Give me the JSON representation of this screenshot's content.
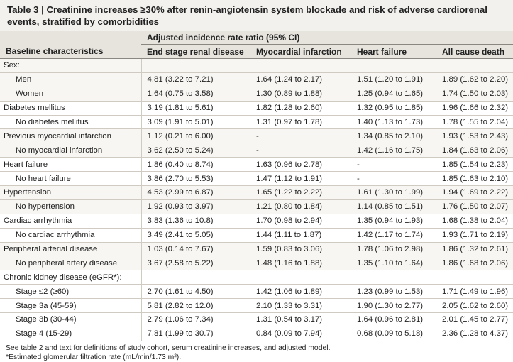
{
  "title": "Table 3 | Creatinine increases ≥30% after renin-angiotensin system blockade and risk of adverse cardiorenal events, stratified by comorbidities",
  "header": {
    "span_label": "Adjusted incidence rate ratio (95% CI)",
    "columns": [
      "Baseline characteristics",
      "End stage renal disease",
      "Myocardial infarction",
      "Heart failure",
      "All cause death"
    ]
  },
  "rows": [
    {
      "label": "Sex:",
      "type": "main",
      "values": [
        "",
        "",
        "",
        ""
      ]
    },
    {
      "label": "Men",
      "type": "sub",
      "values": [
        "4.81 (3.22 to 7.21)",
        "1.64 (1.24 to 2.17)",
        "1.51 (1.20 to 1.91)",
        "1.89 (1.62 to 2.20)"
      ]
    },
    {
      "label": "Women",
      "type": "sub",
      "values": [
        "1.64 (0.75 to 3.58)",
        "1.30 (0.89 to 1.88)",
        "1.25 (0.94 to 1.65)",
        "1.74 (1.50 to 2.03)"
      ]
    },
    {
      "label": "Diabetes mellitus",
      "type": "main",
      "values": [
        "3.19 (1.81 to 5.61)",
        "1.82 (1.28 to 2.60)",
        "1.32 (0.95 to 1.85)",
        "1.96 (1.66 to 2.32)"
      ]
    },
    {
      "label": "No diabetes mellitus",
      "type": "sub",
      "values": [
        "3.09 (1.91 to 5.01)",
        "1.31 (0.97 to 1.78)",
        "1.40 (1.13 to 1.73)",
        "1.78 (1.55 to 2.04)"
      ]
    },
    {
      "label": "Previous myocardial infarction",
      "type": "main",
      "values": [
        "1.12 (0.21 to 6.00)",
        "-",
        "1.34 (0.85 to 2.10)",
        "1.93 (1.53 to 2.43)"
      ]
    },
    {
      "label": "No myocardial infarction",
      "type": "sub",
      "values": [
        "3.62 (2.50 to 5.24)",
        "-",
        "1.42 (1.16 to 1.75)",
        "1.84 (1.63 to 2.06)"
      ]
    },
    {
      "label": "Heart failure",
      "type": "main",
      "values": [
        "1.86 (0.40 to 8.74)",
        "1.63 (0.96 to 2.78)",
        "-",
        "1.85 (1.54 to 2.23)"
      ]
    },
    {
      "label": "No heart failure",
      "type": "sub",
      "values": [
        "3.86 (2.70 to 5.53)",
        "1.47 (1.12 to 1.91)",
        "-",
        "1.85 (1.63 to 2.10)"
      ]
    },
    {
      "label": "Hypertension",
      "type": "main",
      "values": [
        "4.53 (2.99 to 6.87)",
        "1.65 (1.22 to 2.22)",
        "1.61 (1.30 to 1.99)",
        "1.94 (1.69 to 2.22)"
      ]
    },
    {
      "label": "No hypertension",
      "type": "sub",
      "values": [
        "1.92 (0.93 to 3.97)",
        "1.21 (0.80 to 1.84)",
        "1.14 (0.85 to 1.51)",
        "1.76 (1.50 to 2.07)"
      ]
    },
    {
      "label": "Cardiac arrhythmia",
      "type": "main",
      "values": [
        "3.83 (1.36 to 10.8)",
        "1.70 (0.98 to 2.94)",
        "1.35 (0.94 to 1.93)",
        "1.68 (1.38 to 2.04)"
      ]
    },
    {
      "label": "No cardiac arrhythmia",
      "type": "sub",
      "values": [
        "3.49 (2.41 to 5.05)",
        "1.44 (1.11 to 1.87)",
        "1.42 (1.17 to 1.74)",
        "1.93 (1.71 to 2.19)"
      ]
    },
    {
      "label": "Peripheral arterial disease",
      "type": "main",
      "values": [
        "1.03 (0.14 to 7.67)",
        "1.59 (0.83 to 3.06)",
        "1.78 (1.06 to 2.98)",
        "1.86 (1.32 to 2.61)"
      ]
    },
    {
      "label": "No peripheral artery disease",
      "type": "sub",
      "values": [
        "3.67 (2.58 to 5.22)",
        "1.48 (1.16 to 1.88)",
        "1.35 (1.10 to 1.64)",
        "1.86 (1.68 to 2.06)"
      ]
    },
    {
      "label": "Chronic kidney disease (eGFR*):",
      "type": "main",
      "values": [
        "",
        "",
        "",
        ""
      ]
    },
    {
      "label": "Stage ≤2 (≥60)",
      "type": "sub",
      "values": [
        "2.70 (1.61 to 4.50)",
        "1.42 (1.06 to 1.89)",
        "1.23 (0.99 to 1.53)",
        "1.71 (1.49 to 1.96)"
      ]
    },
    {
      "label": "Stage 3a (45-59)",
      "type": "sub",
      "values": [
        "5.81 (2.82 to 12.0)",
        "2.10 (1.33 to 3.31)",
        "1.90 (1.30 to 2.77)",
        "2.05 (1.62 to 2.60)"
      ]
    },
    {
      "label": "Stage 3b (30-44)",
      "type": "sub",
      "values": [
        "2.79 (1.06 to 7.34)",
        "1.31 (0.54 to 3.17)",
        "1.64 (0.96 to 2.81)",
        "2.01 (1.45 to 2.77)"
      ]
    },
    {
      "label": "Stage 4 (15-29)",
      "type": "sub",
      "values": [
        "7.81 (1.99 to 30.7)",
        "0.84 (0.09 to 7.94)",
        "0.68 (0.09 to 5.18)",
        "2.36 (1.28 to 4.37)"
      ]
    }
  ],
  "footnotes": [
    "See table 2 and text for definitions of study cohort, serum creatinine increases, and adjusted model.",
    "*Estimated glomerular filtration rate (mL/min/1.73 m²)."
  ]
}
